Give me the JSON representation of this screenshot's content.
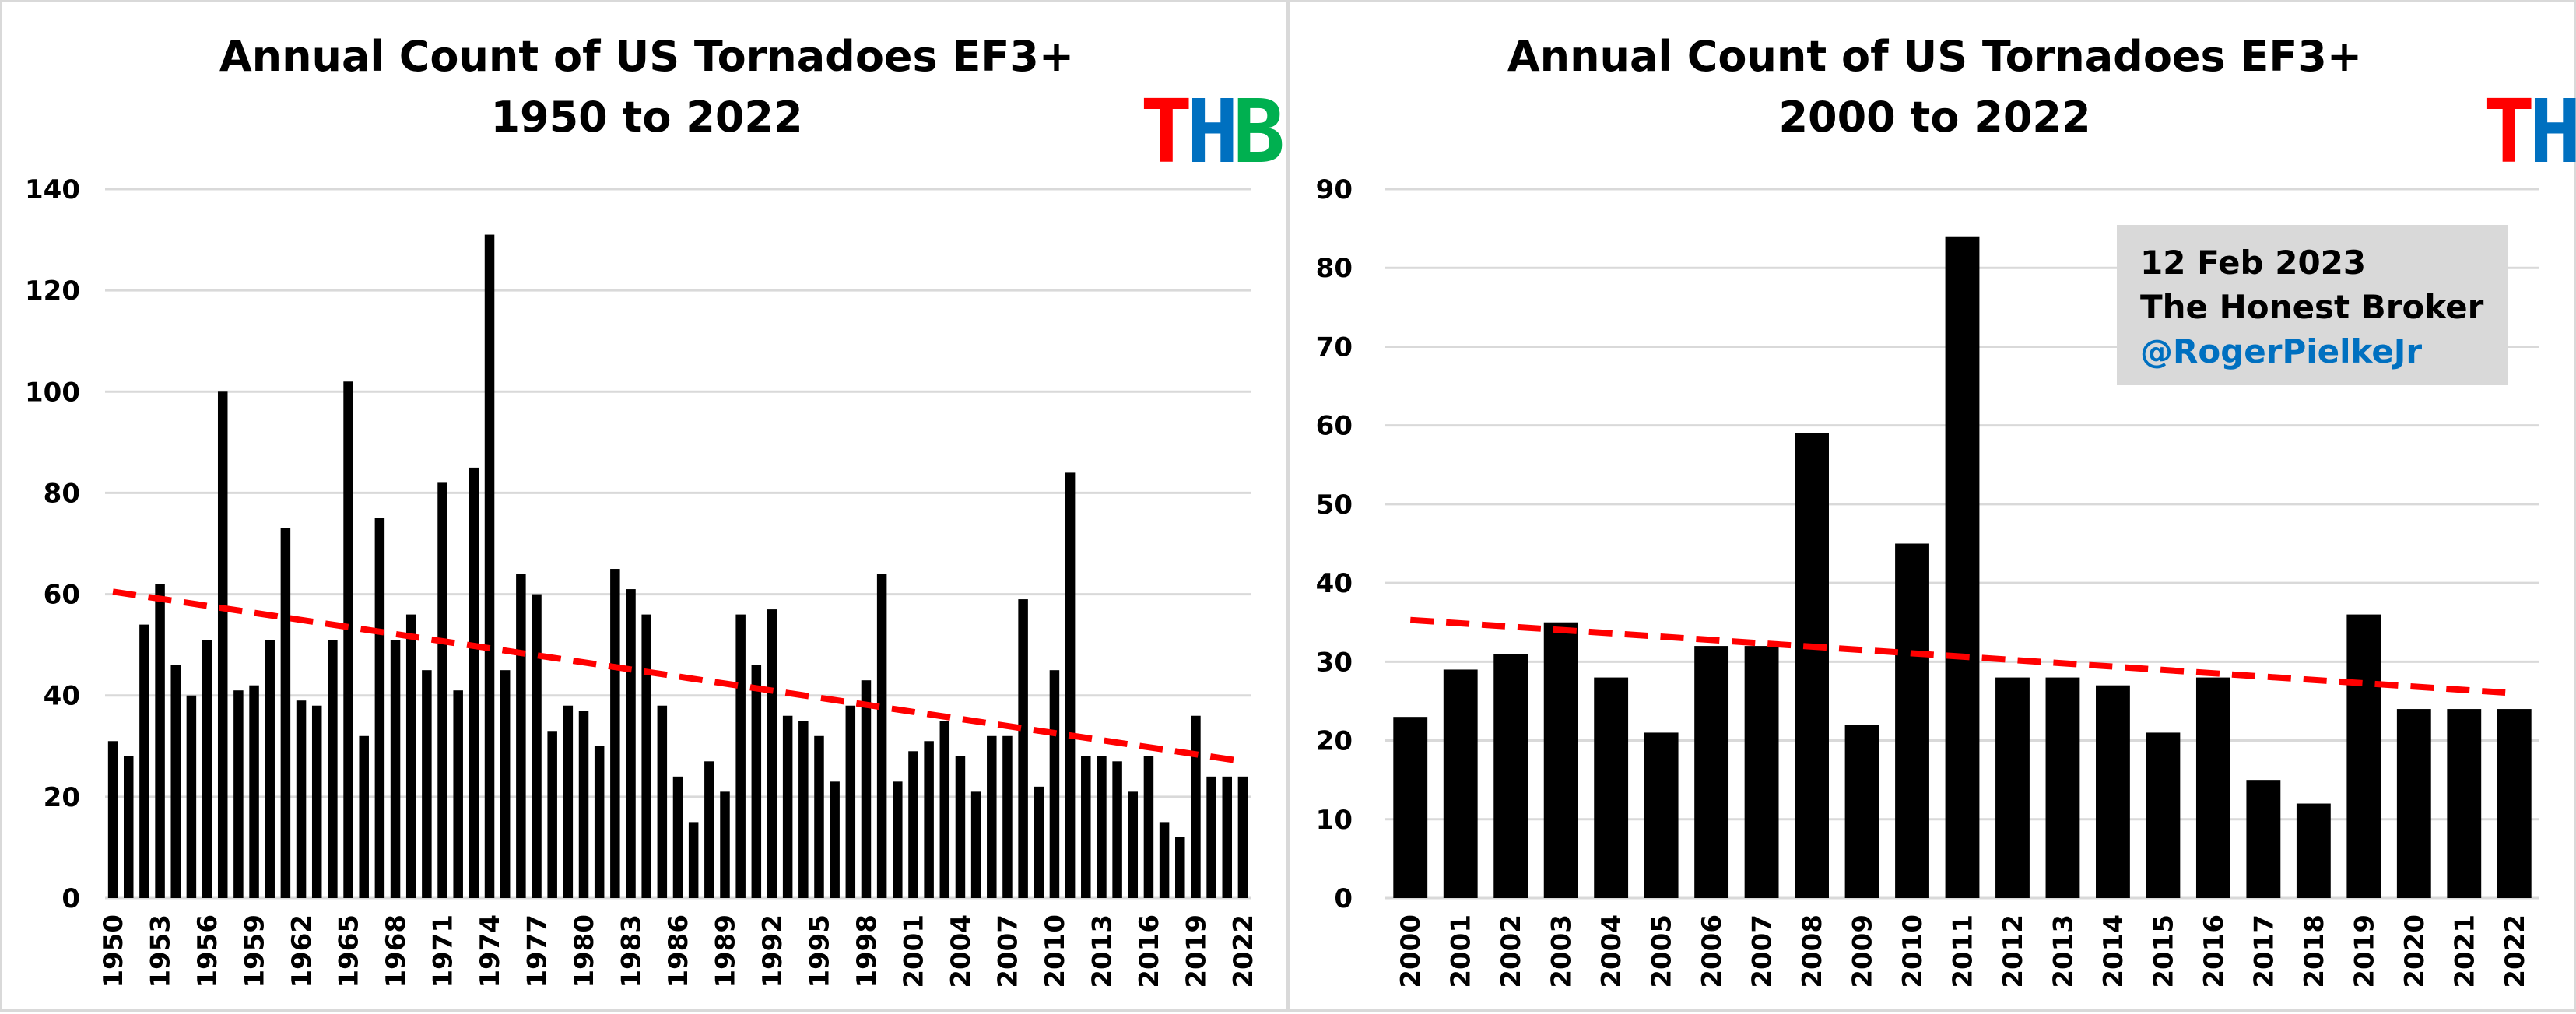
{
  "logo": {
    "letters": [
      "T",
      "H",
      "B"
    ],
    "colors": [
      "#ff0000",
      "#0070c0",
      "#00b050"
    ]
  },
  "info_box": {
    "date": "12 Feb 2023",
    "publication": "The Honest Broker",
    "handle": "@RogerPielkeJr",
    "handle_color": "#0070c0"
  },
  "colors": {
    "bar": "#000000",
    "trend": "#ff0000",
    "grid": "#d9d9d9"
  },
  "chart_data": [
    {
      "type": "bar",
      "title": "Annual Count of US Tornadoes EF3+",
      "subtitle": "1950 to 2022",
      "x_tick_step": 3,
      "ylim": [
        0,
        140
      ],
      "y_ticks": [
        "0",
        "20",
        "40",
        "60",
        "80",
        "100",
        "120",
        "140"
      ],
      "categories": [
        "1950",
        "1951",
        "1952",
        "1953",
        "1954",
        "1955",
        "1956",
        "1957",
        "1958",
        "1959",
        "1960",
        "1961",
        "1962",
        "1963",
        "1964",
        "1965",
        "1966",
        "1967",
        "1968",
        "1969",
        "1970",
        "1971",
        "1972",
        "1973",
        "1974",
        "1975",
        "1976",
        "1977",
        "1978",
        "1979",
        "1980",
        "1981",
        "1982",
        "1983",
        "1984",
        "1985",
        "1986",
        "1987",
        "1988",
        "1989",
        "1990",
        "1991",
        "1992",
        "1993",
        "1994",
        "1995",
        "1996",
        "1997",
        "1998",
        "1999",
        "2000",
        "2001",
        "2002",
        "2003",
        "2004",
        "2005",
        "2006",
        "2007",
        "2008",
        "2009",
        "2010",
        "2011",
        "2012",
        "2013",
        "2014",
        "2015",
        "2016",
        "2017",
        "2018",
        "2019",
        "2020",
        "2021",
        "2022"
      ],
      "values": [
        31,
        28,
        54,
        62,
        46,
        40,
        51,
        100,
        41,
        42,
        51,
        73,
        39,
        38,
        51,
        102,
        32,
        75,
        51,
        56,
        45,
        82,
        41,
        85,
        131,
        45,
        64,
        60,
        33,
        38,
        37,
        30,
        65,
        61,
        56,
        38,
        24,
        15,
        27,
        21,
        56,
        46,
        57,
        36,
        35,
        32,
        23,
        38,
        43,
        64,
        23,
        29,
        31,
        35,
        28,
        21,
        32,
        32,
        59,
        22,
        45,
        84,
        28,
        28,
        27,
        21,
        28,
        15,
        12,
        36,
        24,
        24,
        24
      ],
      "trend": {
        "start": 60.5,
        "end": 27
      }
    },
    {
      "type": "bar",
      "title": "Annual Count of US Tornadoes EF3+",
      "subtitle": "2000 to 2022",
      "x_tick_step": 1,
      "ylim": [
        0,
        90
      ],
      "y_ticks": [
        "0",
        "10",
        "20",
        "30",
        "40",
        "50",
        "60",
        "70",
        "80",
        "90"
      ],
      "categories": [
        "2000",
        "2001",
        "2002",
        "2003",
        "2004",
        "2005",
        "2006",
        "2007",
        "2008",
        "2009",
        "2010",
        "2011",
        "2012",
        "2013",
        "2014",
        "2015",
        "2016",
        "2017",
        "2018",
        "2019",
        "2020",
        "2021",
        "2022"
      ],
      "values": [
        23,
        29,
        31,
        35,
        28,
        21,
        32,
        32,
        59,
        22,
        45,
        84,
        28,
        28,
        27,
        21,
        28,
        15,
        12,
        36,
        24,
        24,
        24
      ],
      "trend": {
        "start": 35.3,
        "end": 26
      }
    }
  ]
}
